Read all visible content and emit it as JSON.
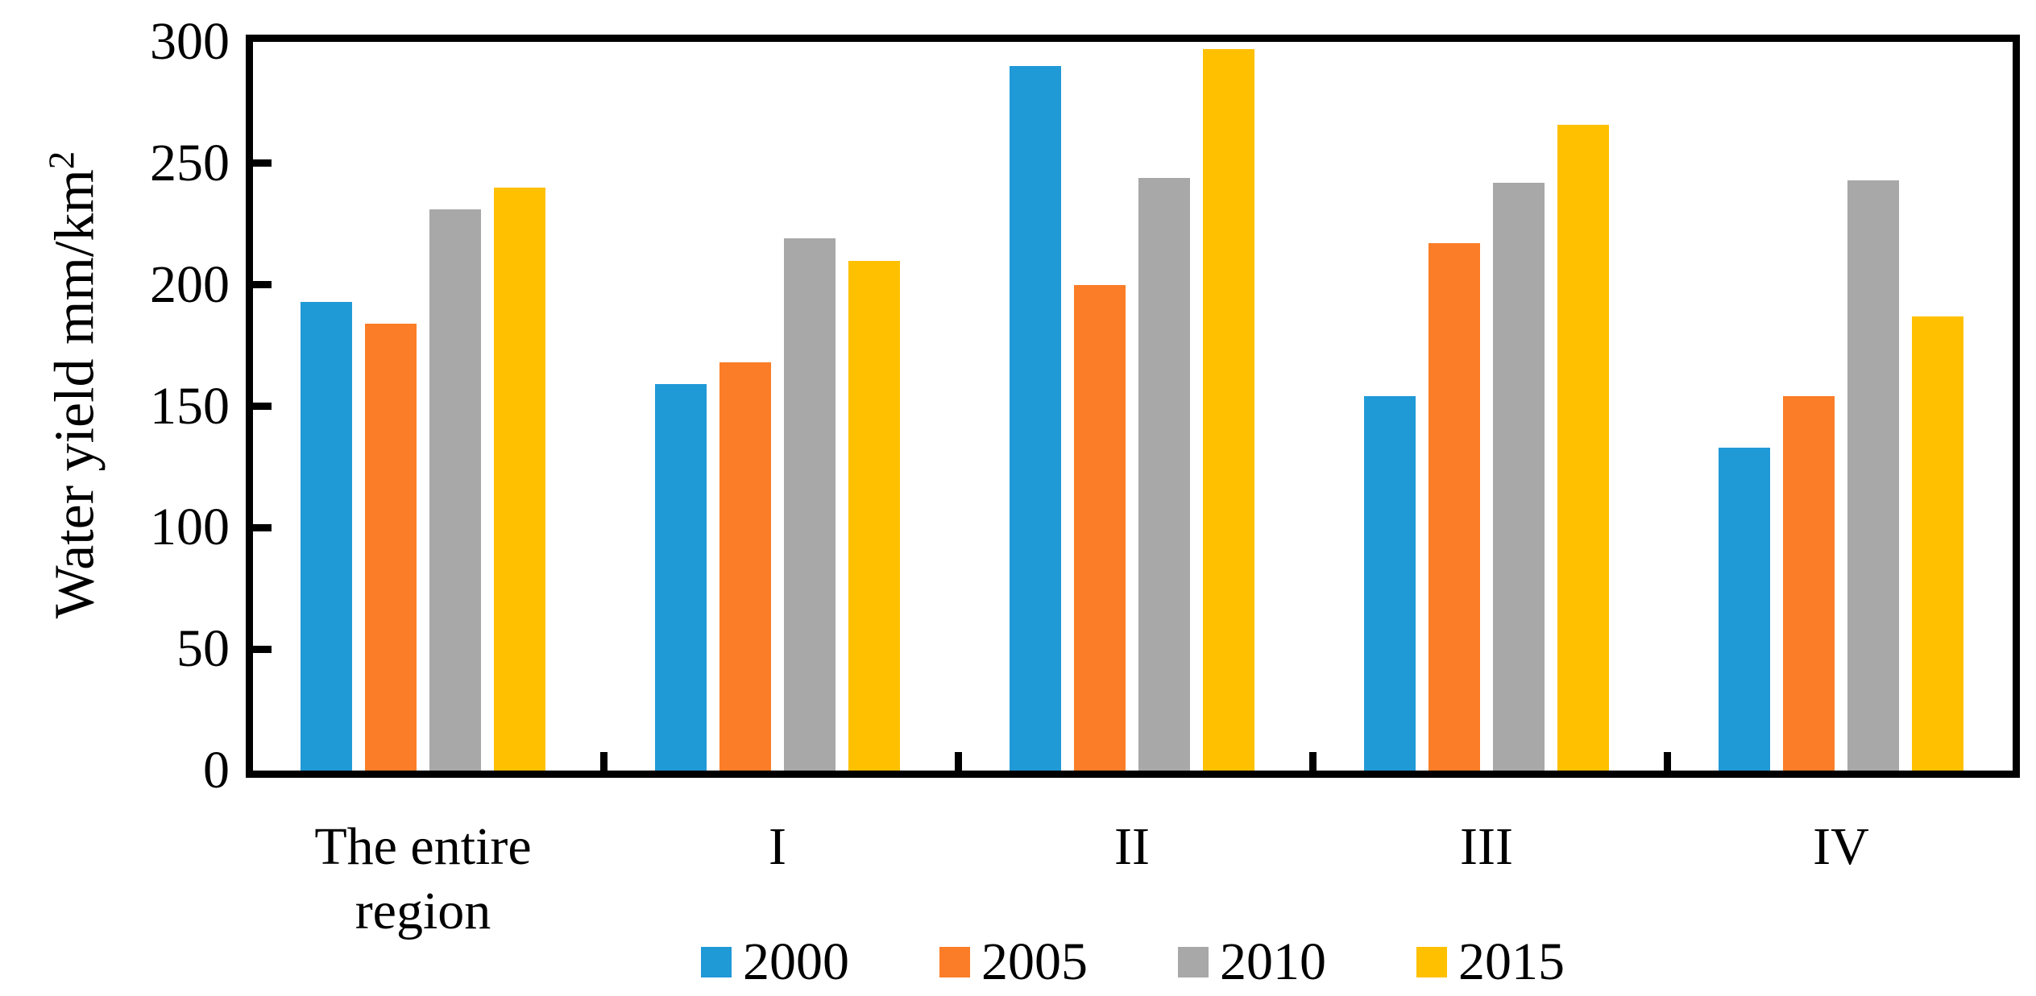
{
  "page": {
    "background": "#ffffff"
  },
  "chart_data": {
    "type": "bar",
    "title": "",
    "ylabel": "Water yield mm/km²",
    "ylabel_main": "Water yield mm/km",
    "ylabel_sup": "2",
    "categories": [
      "The entire region",
      "I",
      "II",
      "III",
      "IV"
    ],
    "series": [
      {
        "name": "2000",
        "color": "#2099D7",
        "values": [
          193,
          159,
          290,
          154,
          133
        ]
      },
      {
        "name": "2005",
        "color": "#FB7D27",
        "values": [
          184,
          168,
          200,
          217,
          154
        ]
      },
      {
        "name": "2010",
        "color": "#A8A8A8",
        "values": [
          231,
          219,
          244,
          242,
          243
        ]
      },
      {
        "name": "2015",
        "color": "#FFC000",
        "values": [
          240,
          210,
          297,
          266,
          187
        ]
      }
    ],
    "ylim": [
      0,
      300
    ],
    "yticks": [
      0,
      50,
      100,
      150,
      200,
      250,
      300
    ],
    "grid": false,
    "legend_position": "bottom",
    "axis_color": "#000000",
    "tick_direction": "inside"
  }
}
